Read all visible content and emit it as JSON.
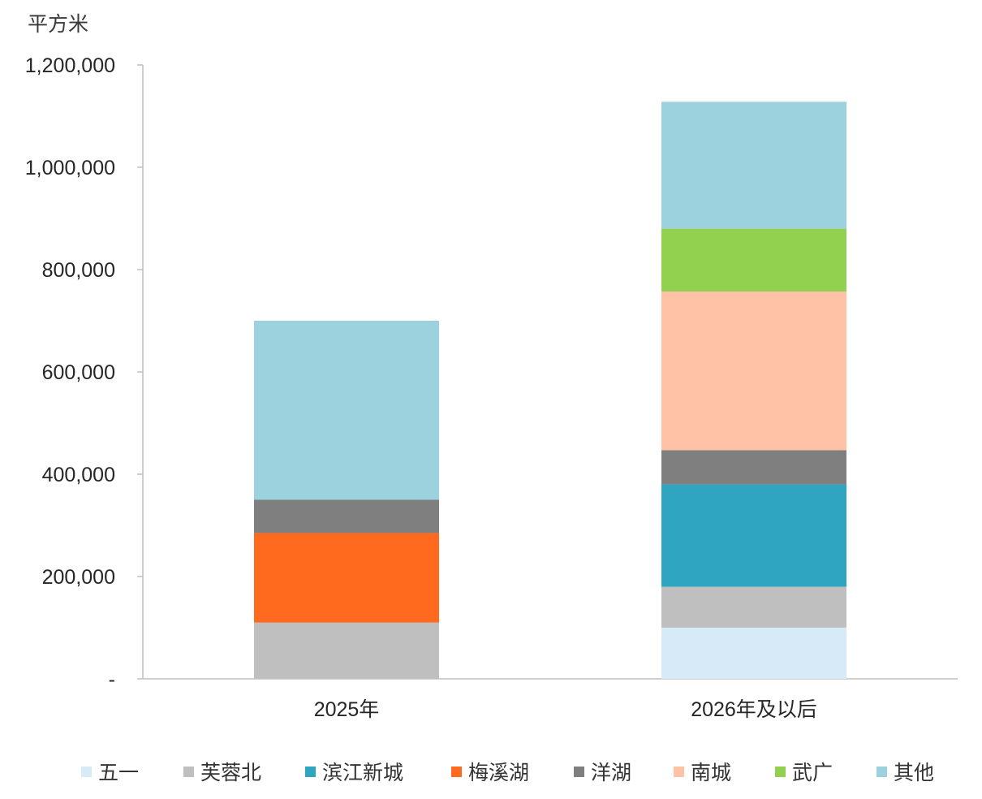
{
  "chart_data": {
    "type": "bar",
    "stacked": true,
    "ylabel": "平方米",
    "ylim": [
      0,
      1200000
    ],
    "yticks": [
      0,
      200000,
      400000,
      600000,
      800000,
      1000000,
      1200000
    ],
    "ytick_labels": [
      "-",
      "200,000",
      "400,000",
      "600,000",
      "800,000",
      "1,000,000",
      "1,200,000"
    ],
    "categories": [
      "2025年",
      "2026年及以后"
    ],
    "grid": false,
    "legend_position": "bottom",
    "series": [
      {
        "name": "五一",
        "color": "#d6eaf8",
        "values": [
          0,
          100000
        ]
      },
      {
        "name": "芙蓉北",
        "color": "#bfbfbf",
        "values": [
          110000,
          80000
        ]
      },
      {
        "name": "滨江新城",
        "color": "#2fa5c2",
        "values": [
          0,
          200000
        ]
      },
      {
        "name": "梅溪湖",
        "color": "#ff6a1f",
        "values": [
          175000,
          0
        ]
      },
      {
        "name": "洋湖",
        "color": "#7f7f7f",
        "values": [
          65000,
          67000
        ]
      },
      {
        "name": "南城",
        "color": "#ffc2a6",
        "values": [
          0,
          310000
        ]
      },
      {
        "name": "武广",
        "color": "#92d050",
        "values": [
          0,
          123000
        ]
      },
      {
        "name": "其他",
        "color": "#9cd2dd",
        "values": [
          350000,
          248000
        ]
      }
    ]
  }
}
